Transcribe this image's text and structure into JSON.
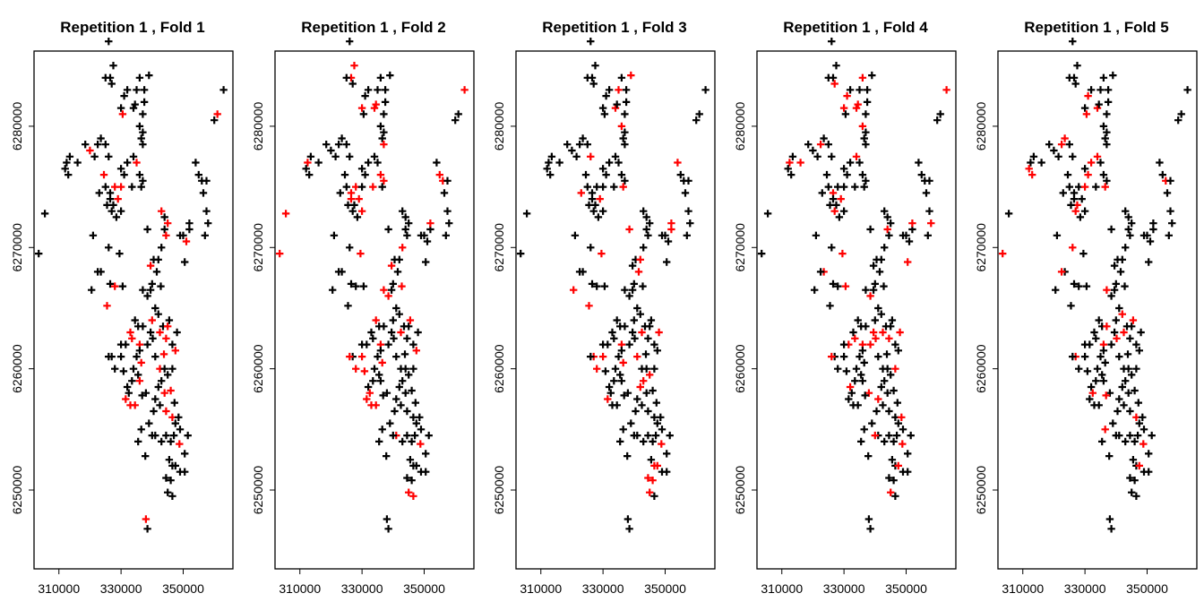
{
  "figure": {
    "layout": "1x5",
    "mark": "cross-plus",
    "colors": {
      "train": "#000000",
      "test": "#ff0000",
      "frame": "#000000"
    }
  },
  "chart_data": [
    {
      "type": "scatter",
      "title": "Repetition  1 , Fold  1",
      "xlim": [
        302000,
        366000
      ],
      "ylim": [
        6243500,
        6286200
      ],
      "xticks": [
        310000,
        330000,
        350000
      ],
      "yticks": [
        6250000,
        6260000,
        6270000,
        6280000
      ],
      "xtick_labels": [
        "310000",
        "330000",
        "350000"
      ],
      "ytick_labels": [
        "6250000",
        "6260000",
        "6270000",
        "6280000"
      ],
      "seed": 1
    },
    {
      "type": "scatter",
      "title": "Repetition  1 , Fold  2",
      "xlim": [
        302000,
        366000
      ],
      "ylim": [
        6243500,
        6286200
      ],
      "xticks": [
        310000,
        330000,
        350000
      ],
      "yticks": [
        6250000,
        6260000,
        6270000,
        6280000
      ],
      "xtick_labels": [
        "310000",
        "330000",
        "350000"
      ],
      "ytick_labels": [
        "6250000",
        "6260000",
        "6270000",
        "6280000"
      ],
      "seed": 2
    },
    {
      "type": "scatter",
      "title": "Repetition  1 , Fold  3",
      "xlim": [
        302000,
        366000
      ],
      "ylim": [
        6243500,
        6286200
      ],
      "xticks": [
        310000,
        330000,
        350000
      ],
      "yticks": [
        6250000,
        6260000,
        6270000,
        6280000
      ],
      "xtick_labels": [
        "310000",
        "330000",
        "350000"
      ],
      "ytick_labels": [
        "6250000",
        "6260000",
        "6270000",
        "6280000"
      ],
      "seed": 3
    },
    {
      "type": "scatter",
      "title": "Repetition  1 , Fold  4",
      "xlim": [
        302000,
        366000
      ],
      "ylim": [
        6243500,
        6286200
      ],
      "xticks": [
        310000,
        330000,
        350000
      ],
      "yticks": [
        6250000,
        6260000,
        6270000,
        6280000
      ],
      "xtick_labels": [
        "310000",
        "330000",
        "350000"
      ],
      "ytick_labels": [
        "6250000",
        "6260000",
        "6270000",
        "6280000"
      ],
      "seed": 4
    },
    {
      "type": "scatter",
      "title": "Repetition  1 , Fold  5",
      "xlim": [
        302000,
        366000
      ],
      "ylim": [
        6243500,
        6286200
      ],
      "xticks": [
        310000,
        330000,
        350000
      ],
      "yticks": [
        6250000,
        6260000,
        6270000,
        6280000
      ],
      "xtick_labels": [
        "310000",
        "330000",
        "350000"
      ],
      "ytick_labels": [
        "6250000",
        "6260000",
        "6270000",
        "6280000"
      ],
      "seed": 5
    }
  ],
  "points": [
    [
      326000,
      6287000
    ],
    [
      327500,
      6285000
    ],
    [
      326500,
      6284000
    ],
    [
      325000,
      6284000
    ],
    [
      327000,
      6283500
    ],
    [
      332000,
      6283000
    ],
    [
      335000,
      6283000
    ],
    [
      337500,
      6283000
    ],
    [
      330000,
      6281500
    ],
    [
      334000,
      6281500
    ],
    [
      337000,
      6281000
    ],
    [
      337500,
      6282000
    ],
    [
      330500,
      6281000
    ],
    [
      363000,
      6283000
    ],
    [
      361000,
      6281000
    ],
    [
      360000,
      6280500
    ],
    [
      336000,
      6280000
    ],
    [
      337000,
      6279500
    ],
    [
      336500,
      6279000
    ],
    [
      337000,
      6278500
    ],
    [
      323500,
      6279000
    ],
    [
      322500,
      6278500
    ],
    [
      325000,
      6278500
    ],
    [
      320000,
      6278000
    ],
    [
      321500,
      6277500
    ],
    [
      326000,
      6277500
    ],
    [
      334000,
      6277500
    ],
    [
      335000,
      6277000
    ],
    [
      332000,
      6277000
    ],
    [
      312500,
      6277000
    ],
    [
      312000,
      6276500
    ],
    [
      313000,
      6276000
    ],
    [
      313500,
      6277500
    ],
    [
      330000,
      6276500
    ],
    [
      331000,
      6276000
    ],
    [
      336000,
      6276000
    ],
    [
      337000,
      6275500
    ],
    [
      336500,
      6275000
    ],
    [
      354000,
      6277000
    ],
    [
      355000,
      6276000
    ],
    [
      356000,
      6275500
    ],
    [
      357500,
      6275500
    ],
    [
      356500,
      6274500
    ],
    [
      325000,
      6275000
    ],
    [
      326500,
      6274500
    ],
    [
      328000,
      6275000
    ],
    [
      330000,
      6275000
    ],
    [
      326500,
      6274000
    ],
    [
      327500,
      6273500
    ],
    [
      329000,
      6274000
    ],
    [
      325500,
      6273500
    ],
    [
      327000,
      6273000
    ],
    [
      328500,
      6272500
    ],
    [
      330000,
      6273000
    ],
    [
      343000,
      6273000
    ],
    [
      344000,
      6272500
    ],
    [
      345000,
      6272000
    ],
    [
      344000,
      6271500
    ],
    [
      350000,
      6271000
    ],
    [
      349000,
      6271000
    ],
    [
      351000,
      6270500
    ],
    [
      352000,
      6271500
    ],
    [
      357000,
      6271000
    ],
    [
      358000,
      6272000
    ],
    [
      357500,
      6273000
    ],
    [
      303500,
      6269500
    ],
    [
      305500,
      6272800
    ],
    [
      321000,
      6271000
    ],
    [
      326000,
      6270000
    ],
    [
      329500,
      6269500
    ],
    [
      340500,
      6269000
    ],
    [
      342000,
      6269000
    ],
    [
      339500,
      6268500
    ],
    [
      341500,
      6268000
    ],
    [
      343000,
      6270000
    ],
    [
      344500,
      6271000
    ],
    [
      350500,
      6268800
    ],
    [
      323500,
      6268000
    ],
    [
      322500,
      6268000
    ],
    [
      320500,
      6266500
    ],
    [
      326500,
      6267000
    ],
    [
      328000,
      6266800
    ],
    [
      330500,
      6266800
    ],
    [
      337000,
      6266500
    ],
    [
      338500,
      6266000
    ],
    [
      339500,
      6266500
    ],
    [
      340000,
      6267000
    ],
    [
      341000,
      6265000
    ],
    [
      342000,
      6264500
    ],
    [
      340000,
      6264000
    ],
    [
      339500,
      6263000
    ],
    [
      334500,
      6264000
    ],
    [
      335500,
      6263500
    ],
    [
      337000,
      6263500
    ],
    [
      342500,
      6263000
    ],
    [
      343500,
      6263500
    ],
    [
      345000,
      6263500
    ],
    [
      344500,
      6262500
    ],
    [
      346500,
      6262000
    ],
    [
      347500,
      6261500
    ],
    [
      333500,
      6262500
    ],
    [
      331500,
      6262000
    ],
    [
      330000,
      6262000
    ],
    [
      336000,
      6262000
    ],
    [
      338500,
      6262000
    ],
    [
      336000,
      6261500
    ],
    [
      335000,
      6261000
    ],
    [
      336500,
      6260500
    ],
    [
      330000,
      6261000
    ],
    [
      327000,
      6261000
    ],
    [
      326000,
      6261000
    ],
    [
      334000,
      6260000
    ],
    [
      335500,
      6259500
    ],
    [
      336000,
      6259000
    ],
    [
      333500,
      6259000
    ],
    [
      332000,
      6258500
    ],
    [
      332500,
      6258000
    ],
    [
      331500,
      6257500
    ],
    [
      333000,
      6257000
    ],
    [
      334500,
      6257000
    ],
    [
      341000,
      6261000
    ],
    [
      342500,
      6260000
    ],
    [
      344000,
      6260000
    ],
    [
      346500,
      6260000
    ],
    [
      345000,
      6259500
    ],
    [
      343000,
      6259000
    ],
    [
      342000,
      6258500
    ],
    [
      344000,
      6258000
    ],
    [
      341000,
      6257500
    ],
    [
      342500,
      6257000
    ],
    [
      344500,
      6256500
    ],
    [
      346500,
      6256000
    ],
    [
      347500,
      6255500
    ],
    [
      348500,
      6256000
    ],
    [
      349000,
      6255000
    ],
    [
      347000,
      6254500
    ],
    [
      346000,
      6254000
    ],
    [
      344500,
      6254500
    ],
    [
      343000,
      6254000
    ],
    [
      341000,
      6254500
    ],
    [
      340000,
      6254500
    ],
    [
      335500,
      6254000
    ],
    [
      336500,
      6255000
    ],
    [
      345500,
      6252500
    ],
    [
      346500,
      6252000
    ],
    [
      347500,
      6252000
    ],
    [
      349000,
      6251500
    ],
    [
      350500,
      6251500
    ],
    [
      344500,
      6251000
    ],
    [
      346000,
      6250800
    ],
    [
      345000,
      6249800
    ],
    [
      346500,
      6249500
    ],
    [
      328000,
      6260000
    ],
    [
      339000,
      6255500
    ],
    [
      340500,
      6256500
    ],
    [
      350500,
      6253000
    ],
    [
      351500,
      6254500
    ],
    [
      345500,
      6264000
    ],
    [
      338000,
      6247600
    ],
    [
      338500,
      6246800
    ],
    [
      325500,
      6265200
    ],
    [
      348000,
      6263000
    ],
    [
      346000,
      6258200
    ],
    [
      333000,
      6263000
    ],
    [
      338000,
      6258000
    ],
    [
      352000,
      6272000
    ],
    [
      338500,
      6271500
    ],
    [
      323000,
      6274500
    ],
    [
      331000,
      6282500
    ],
    [
      336000,
      6284000
    ],
    [
      339000,
      6284200
    ],
    [
      334500,
      6281800
    ],
    [
      318500,
      6278500
    ],
    [
      316000,
      6277000
    ],
    [
      324500,
      6276000
    ],
    [
      333500,
      6275000
    ],
    [
      342800,
      6266800
    ],
    [
      340200,
      6262500
    ],
    [
      348800,
      6253800
    ],
    [
      347200,
      6257200
    ],
    [
      330800,
      6259800
    ],
    [
      336800,
      6257800
    ],
    [
      343800,
      6261200
    ],
    [
      337800,
      6252800
    ]
  ]
}
